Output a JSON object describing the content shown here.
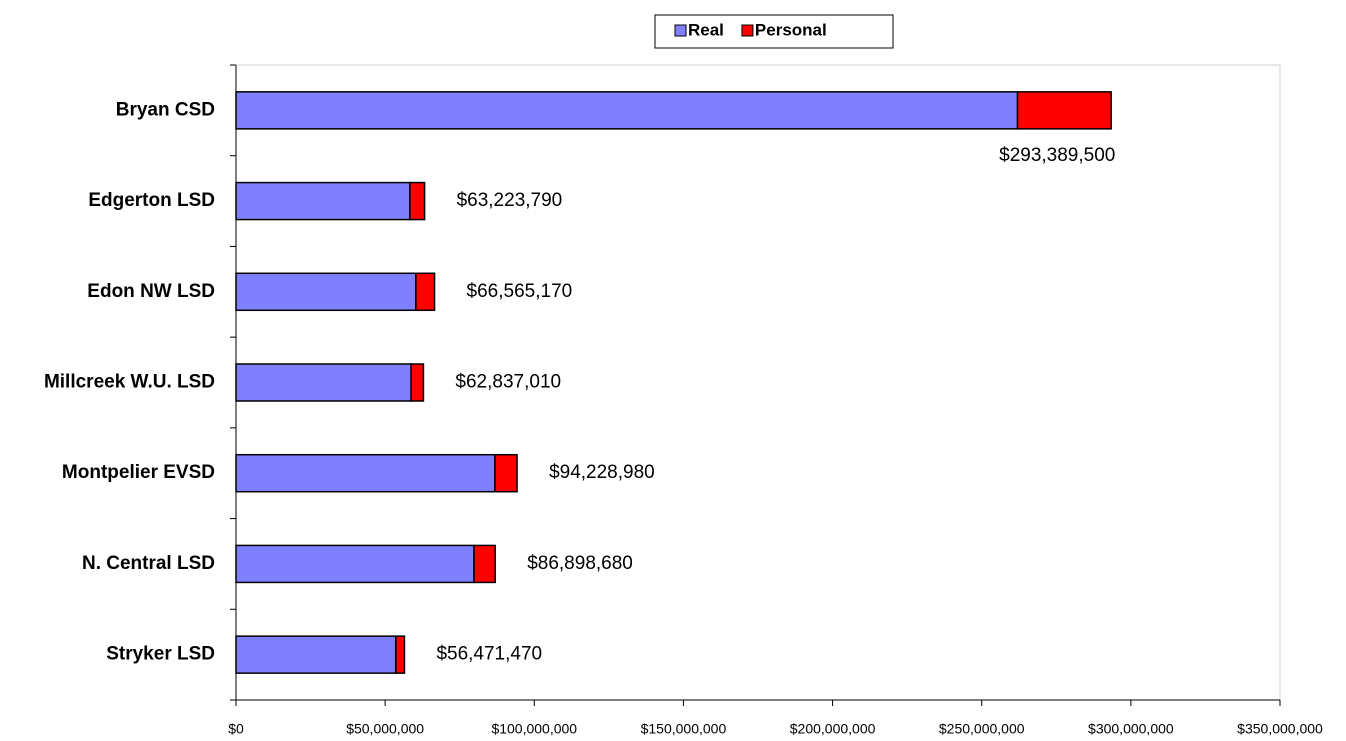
{
  "chart_data": {
    "type": "stacked-barh",
    "categories": [
      "Bryan CSD",
      "Edgerton LSD",
      "Edon NW LSD",
      "Millcreek W.U. LSD",
      "Montpelier EVSD",
      "N. Central LSD",
      "Stryker LSD"
    ],
    "series": [
      {
        "name": "Real",
        "color": "#8080ff",
        "values": [
          262000000,
          58300000,
          60300000,
          58700000,
          86800000,
          79800000,
          53600000
        ]
      },
      {
        "name": "Personal",
        "color": "#ff0000",
        "values": [
          31389500,
          4923790,
          6265170,
          4137010,
          7428980,
          7098680,
          2871470
        ]
      }
    ],
    "totals": [
      293389500,
      63223790,
      66565170,
      62837010,
      94228980,
      86898680,
      56471470
    ],
    "total_labels": [
      "$293,389,500",
      "$63,223,790",
      "$66,565,170",
      "$62,837,010",
      "$94,228,980",
      "$86,898,680",
      "$56,471,470"
    ],
    "xlim": [
      0,
      350000000
    ],
    "xticks": [
      {
        "value": 0,
        "label": "$0"
      },
      {
        "value": 50000000,
        "label": "$50,000,000"
      },
      {
        "value": 100000000,
        "label": "$100,000,000"
      },
      {
        "value": 150000000,
        "label": "$150,000,000"
      },
      {
        "value": 200000000,
        "label": "$200,000,000"
      },
      {
        "value": 250000000,
        "label": "$250,000,000"
      },
      {
        "value": 300000000,
        "label": "$300,000,000"
      },
      {
        "value": 350000000,
        "label": "$350,000,000"
      }
    ],
    "legend": "top"
  }
}
